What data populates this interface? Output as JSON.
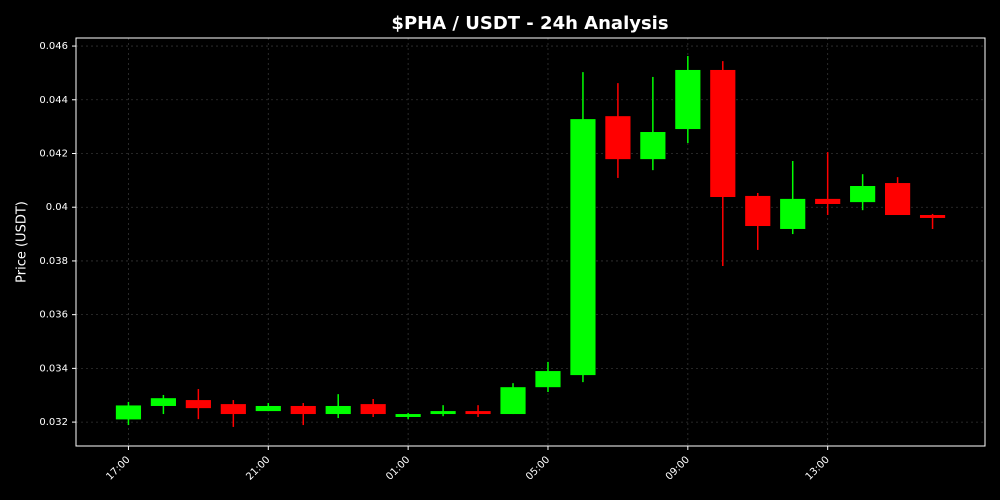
{
  "chart_data": {
    "type": "candlestick",
    "title": "$PHA / USDT - 24h Analysis",
    "y_label": "Price (USDT)",
    "categories": [
      "17:00",
      null,
      null,
      null,
      "21:00",
      null,
      null,
      null,
      "01:00",
      null,
      null,
      null,
      "05:00",
      null,
      null,
      null,
      "09:00",
      null,
      null,
      null,
      "13:00",
      null,
      null,
      null
    ],
    "open": [
      0.0321,
      0.0326,
      0.03282,
      0.03267,
      0.03241,
      0.0326,
      0.0323,
      0.03267,
      0.03219,
      0.0323,
      0.03241,
      0.0323,
      0.0333,
      0.03375,
      0.04339,
      0.04179,
      0.04291,
      0.04511,
      0.04042,
      0.03919,
      0.04031,
      0.04019,
      0.0409,
      0.03971
    ],
    "high": [
      0.03275,
      0.03301,
      0.03323,
      0.03282,
      0.03271,
      0.03271,
      0.03304,
      0.03286,
      0.03234,
      0.03263,
      0.03263,
      0.03345,
      0.03424,
      0.04503,
      0.04462,
      0.04485,
      0.04563,
      0.04544,
      0.04053,
      0.04172,
      0.04205,
      0.04123,
      0.04112,
      0.03975
    ],
    "low": [
      0.03189,
      0.0323,
      0.03211,
      0.03182,
      0.03241,
      0.03189,
      0.03215,
      0.03219,
      0.03211,
      0.03222,
      0.03219,
      0.0323,
      0.03312,
      0.03349,
      0.04109,
      0.04138,
      0.04239,
      0.03781,
      0.03841,
      0.039,
      0.03971,
      0.03989,
      0.03971,
      0.03919
    ],
    "close": [
      0.03262,
      0.03289,
      0.03252,
      0.0323,
      0.0326,
      0.0323,
      0.0326,
      0.0323,
      0.0323,
      0.03241,
      0.0323,
      0.0333,
      0.0339,
      0.04328,
      0.04179,
      0.0428,
      0.04511,
      0.04038,
      0.0393,
      0.04031,
      0.04012,
      0.04079,
      0.03971,
      0.0396
    ],
    "up_color": "#00ff00",
    "down_color": "#ff0000",
    "ylim": [
      0.03111,
      0.0463
    ],
    "yticks": [
      0.032,
      0.034,
      0.036,
      0.038,
      0.04,
      0.042,
      0.044,
      0.046
    ],
    "grid": true
  }
}
